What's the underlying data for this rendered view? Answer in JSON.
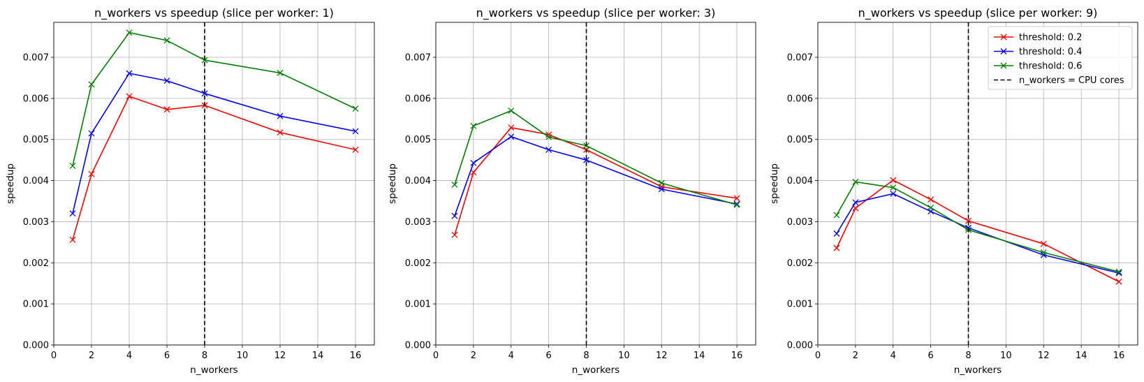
{
  "chart_data": [
    {
      "type": "line",
      "title": "n_workers vs speedup (slice per worker: 1)",
      "xlabel": "n_workers",
      "ylabel": "speedup",
      "xlim": [
        0,
        17
      ],
      "ylim": [
        0,
        0.00785
      ],
      "xticks": [
        "0",
        "2",
        "4",
        "6",
        "8",
        "10",
        "12",
        "14",
        "16"
      ],
      "yticks": [
        "0.000",
        "0.001",
        "0.002",
        "0.003",
        "0.004",
        "0.005",
        "0.006",
        "0.007"
      ],
      "grid": true,
      "x": [
        1,
        2,
        4,
        6,
        8,
        12,
        16
      ],
      "series": [
        {
          "name": "threshold: 0.2",
          "color": "#ff0000",
          "values": [
            0.00256,
            0.00416,
            0.00605,
            0.00573,
            0.00583,
            0.00517,
            0.00475
          ]
        },
        {
          "name": "threshold: 0.4",
          "color": "#0000ff",
          "values": [
            0.0032,
            0.00515,
            0.00661,
            0.00643,
            0.00612,
            0.00557,
            0.0052
          ]
        },
        {
          "name": "threshold: 0.6",
          "color": "#008000",
          "values": [
            0.00436,
            0.00634,
            0.0076,
            0.00741,
            0.00693,
            0.00662,
            0.00575
          ]
        }
      ],
      "vline": {
        "x": 8,
        "name": "n_workers = CPU cores",
        "color": "#000000"
      },
      "legend": null
    },
    {
      "type": "line",
      "title": "n_workers vs speedup (slice per worker: 3)",
      "xlabel": "n_workers",
      "ylabel": "speedup",
      "xlim": [
        0,
        17
      ],
      "ylim": [
        0,
        0.00785
      ],
      "xticks": [
        "0",
        "2",
        "4",
        "6",
        "8",
        "10",
        "12",
        "14",
        "16"
      ],
      "yticks": [
        "0.000",
        "0.001",
        "0.002",
        "0.003",
        "0.004",
        "0.005",
        "0.006",
        "0.007"
      ],
      "grid": true,
      "x": [
        1,
        2,
        4,
        6,
        8,
        12,
        16
      ],
      "series": [
        {
          "name": "threshold: 0.2",
          "color": "#ff0000",
          "values": [
            0.00268,
            0.0042,
            0.00529,
            0.00512,
            0.00475,
            0.00385,
            0.00357
          ]
        },
        {
          "name": "threshold: 0.4",
          "color": "#0000ff",
          "values": [
            0.00314,
            0.00443,
            0.00507,
            0.00475,
            0.0045,
            0.00379,
            0.00343
          ]
        },
        {
          "name": "threshold: 0.6",
          "color": "#008000",
          "values": [
            0.0039,
            0.00533,
            0.0057,
            0.00506,
            0.00485,
            0.00394,
            0.00341
          ]
        }
      ],
      "vline": {
        "x": 8,
        "name": "n_workers = CPU cores",
        "color": "#000000"
      },
      "legend": null
    },
    {
      "type": "line",
      "title": "n_workers vs speedup (slice per worker: 9)",
      "xlabel": "n_workers",
      "ylabel": "speedup",
      "xlim": [
        0,
        17
      ],
      "ylim": [
        0,
        0.00785
      ],
      "xticks": [
        "0",
        "2",
        "4",
        "6",
        "8",
        "10",
        "12",
        "14",
        "16"
      ],
      "yticks": [
        "0.000",
        "0.001",
        "0.002",
        "0.003",
        "0.004",
        "0.005",
        "0.006",
        "0.007"
      ],
      "grid": true,
      "x": [
        1,
        2,
        4,
        6,
        8,
        12,
        16
      ],
      "series": [
        {
          "name": "threshold: 0.2",
          "color": "#ff0000",
          "values": [
            0.00236,
            0.00333,
            0.00401,
            0.00354,
            0.00302,
            0.00246,
            0.00154
          ]
        },
        {
          "name": "threshold: 0.4",
          "color": "#0000ff",
          "values": [
            0.00271,
            0.00347,
            0.00368,
            0.00325,
            0.00285,
            0.00219,
            0.00175
          ]
        },
        {
          "name": "threshold: 0.6",
          "color": "#008000",
          "values": [
            0.00316,
            0.00397,
            0.00383,
            0.00334,
            0.0028,
            0.00225,
            0.00178
          ]
        }
      ],
      "vline": {
        "x": 8,
        "name": "n_workers = CPU cores",
        "color": "#000000"
      },
      "legend": "top-right"
    }
  ]
}
